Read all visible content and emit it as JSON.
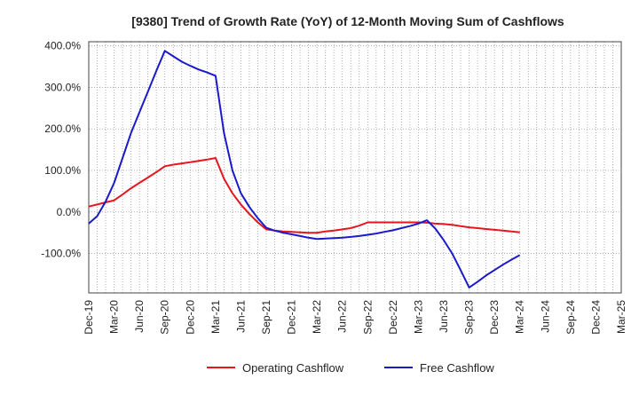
{
  "chart_data": {
    "type": "line",
    "title": "[9380]  Trend of Growth Rate (YoY) of 12-Month Moving Sum of Cashflows",
    "xlabel": "",
    "ylabel": "",
    "x_tick_labels": [
      "Dec-19",
      "Mar-20",
      "Jun-20",
      "Sep-20",
      "Dec-20",
      "Mar-21",
      "Jun-21",
      "Sep-21",
      "Dec-21",
      "Mar-22",
      "Jun-22",
      "Sep-22",
      "Dec-22",
      "Mar-23",
      "Jun-23",
      "Sep-23",
      "Dec-23",
      "Mar-24",
      "Jun-24",
      "Sep-24",
      "Dec-24",
      "Mar-25"
    ],
    "x_range_months": [
      0,
      63
    ],
    "y_ticks": [
      400,
      300,
      200,
      100,
      0,
      -100
    ],
    "y_tick_labels": [
      "400.0%",
      "300.0%",
      "200.0%",
      "100.0%",
      "0.0%",
      "-100.0%"
    ],
    "ylim": [
      -195,
      410
    ],
    "grid": true,
    "legend_position": "bottom",
    "series": [
      {
        "name": "Operating Cashflow",
        "color": "#e8141e",
        "x": [
          "Dec-19",
          "Jan-20",
          "Feb-20",
          "Mar-20",
          "Apr-20",
          "May-20",
          "Jun-20",
          "Jul-20",
          "Aug-20",
          "Sep-20",
          "Oct-20",
          "Nov-20",
          "Dec-20",
          "Jan-21",
          "Feb-21",
          "Mar-21",
          "Apr-21",
          "May-21",
          "Jun-21",
          "Jul-21",
          "Aug-21",
          "Sep-21",
          "Oct-21",
          "Nov-21",
          "Dec-21",
          "Jan-22",
          "Feb-22",
          "Mar-22",
          "Apr-22",
          "May-22",
          "Jun-22",
          "Jul-22",
          "Aug-22",
          "Sep-22",
          "Oct-22",
          "Nov-22",
          "Dec-22",
          "Jan-23",
          "Feb-23",
          "Mar-23",
          "Apr-23",
          "May-23",
          "Jun-23",
          "Jul-23",
          "Aug-23",
          "Sep-23",
          "Oct-23",
          "Nov-23",
          "Dec-23",
          "Jan-24",
          "Feb-24",
          "Mar-24"
        ],
        "values": [
          13,
          18,
          23,
          28,
          42,
          57,
          70,
          83,
          96,
          110,
          114,
          117,
          120,
          123,
          126,
          130,
          80,
          45,
          18,
          -5,
          -25,
          -42,
          -45,
          -47,
          -48,
          -49,
          -50,
          -50,
          -47,
          -45,
          -42,
          -39,
          -33,
          -25,
          -25,
          -25,
          -25,
          -25,
          -25,
          -25,
          -26,
          -28,
          -29,
          -31,
          -34,
          -37,
          -39,
          -41,
          -43,
          -45,
          -47,
          -49
        ]
      },
      {
        "name": "Free Cashflow",
        "color": "#1a1acc",
        "x": [
          "Dec-19",
          "Jan-20",
          "Feb-20",
          "Mar-20",
          "Apr-20",
          "May-20",
          "Jun-20",
          "Jul-20",
          "Aug-20",
          "Sep-20",
          "Oct-20",
          "Nov-20",
          "Dec-20",
          "Jan-21",
          "Feb-21",
          "Mar-21",
          "Apr-21",
          "May-21",
          "Jun-21",
          "Jul-21",
          "Aug-21",
          "Sep-21",
          "Oct-21",
          "Nov-21",
          "Dec-21",
          "Jan-22",
          "Feb-22",
          "Mar-22",
          "Apr-22",
          "May-22",
          "Jun-22",
          "Jul-22",
          "Aug-22",
          "Sep-22",
          "Oct-22",
          "Nov-22",
          "Dec-22",
          "Jan-23",
          "Feb-23",
          "Mar-23",
          "Apr-23",
          "May-23",
          "Jun-23",
          "Jul-23",
          "Aug-23",
          "Sep-23",
          "Oct-23",
          "Nov-23",
          "Dec-23",
          "Jan-24",
          "Feb-24",
          "Mar-24"
        ],
        "values": [
          -28,
          -10,
          25,
          70,
          130,
          190,
          240,
          290,
          340,
          388,
          375,
          362,
          352,
          343,
          336,
          328,
          190,
          100,
          45,
          12,
          -15,
          -38,
          -45,
          -50,
          -54,
          -58,
          -62,
          -65,
          -64,
          -63,
          -62,
          -60,
          -58,
          -55,
          -52,
          -48,
          -44,
          -39,
          -34,
          -28,
          -20,
          -40,
          -68,
          -100,
          -140,
          -182,
          -168,
          -153,
          -140,
          -127,
          -115,
          -104
        ]
      }
    ]
  }
}
